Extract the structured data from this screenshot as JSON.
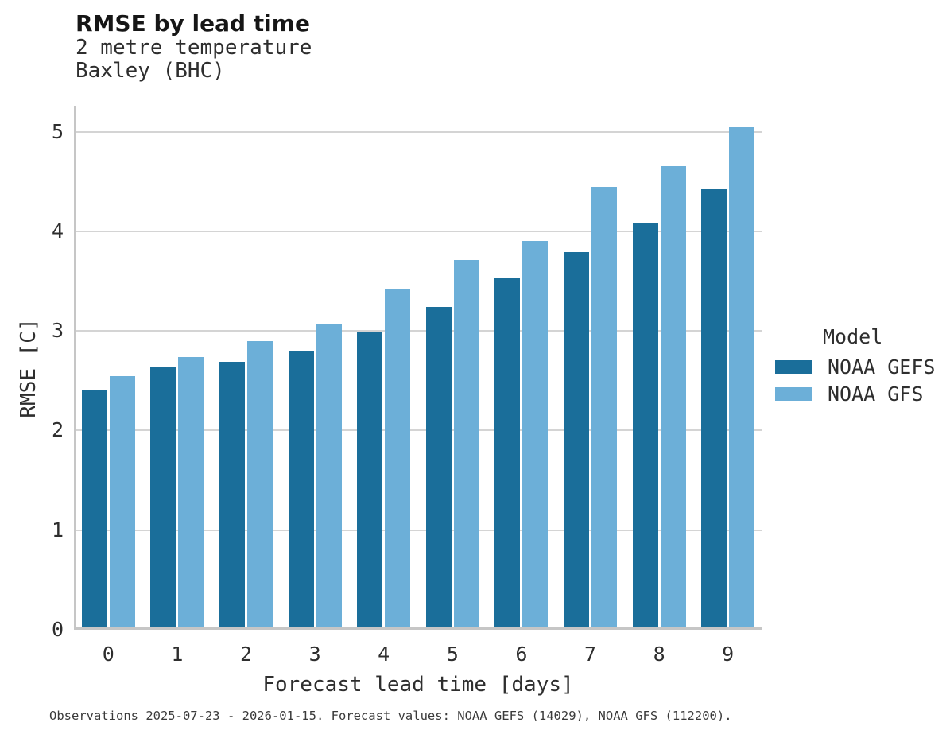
{
  "header": {
    "title": "RMSE by lead time",
    "subtitle_line1": "2 metre temperature",
    "subtitle_line2": "Baxley (BHC)"
  },
  "chart_data": {
    "type": "bar",
    "title": "RMSE by lead time",
    "subtitle": "2 metre temperature — Baxley (BHC)",
    "categories": [
      "0",
      "1",
      "2",
      "3",
      "4",
      "5",
      "6",
      "7",
      "8",
      "9"
    ],
    "series": [
      {
        "name": "NOAA GEFS",
        "color": "#1a6e9a",
        "values": [
          2.39,
          2.62,
          2.67,
          2.78,
          2.97,
          3.22,
          3.51,
          3.77,
          4.06,
          4.4
        ]
      },
      {
        "name": "NOAA GFS",
        "color": "#6cafd8",
        "values": [
          2.52,
          2.71,
          2.87,
          3.05,
          3.39,
          3.69,
          3.88,
          4.42,
          4.63,
          5.02
        ]
      }
    ],
    "xlabel": "Forecast lead time [days]",
    "ylabel": "RMSE [C]",
    "ylim": [
      0,
      5.26
    ],
    "yticks": [
      0,
      1,
      2,
      3,
      4,
      5
    ],
    "grid": true,
    "legend_title": "Model",
    "legend_position": "right",
    "grid_color": "#d4d4d4",
    "spine_color": "#c6c6c6"
  },
  "legend": {
    "title": "Model",
    "items": [
      {
        "label": "NOAA GEFS",
        "color": "#1a6e9a"
      },
      {
        "label": "NOAA GFS",
        "color": "#6cafd8"
      }
    ]
  },
  "caption": "Observations 2025-07-23 - 2026-01-15. Forecast values: NOAA GEFS (14029), NOAA GFS (112200)."
}
